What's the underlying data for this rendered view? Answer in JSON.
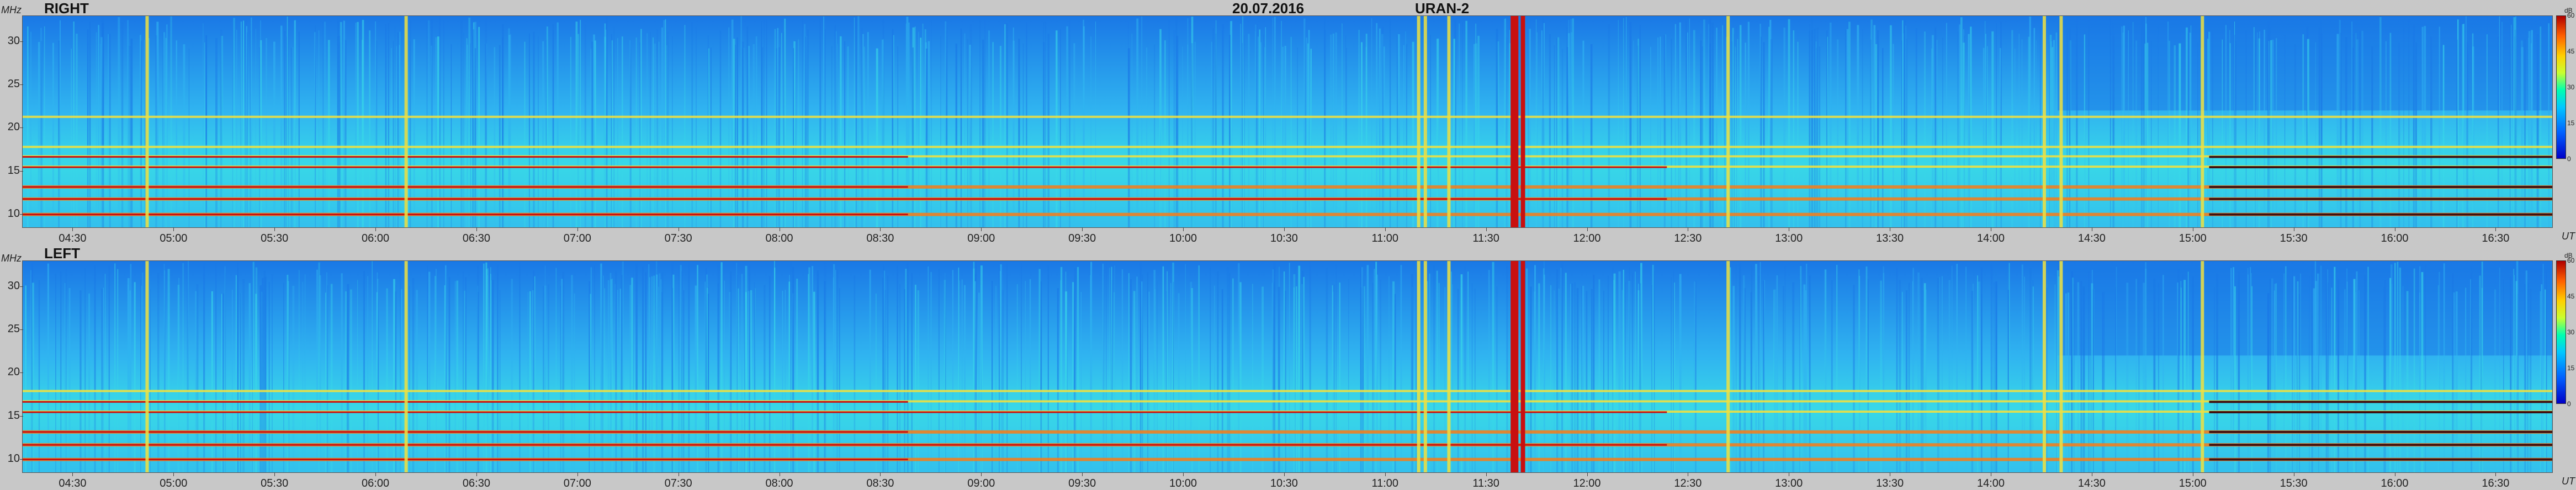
{
  "header": {
    "date": "20.07.2016",
    "instrument": "URAN-2"
  },
  "colors": {
    "background_low": "#1a78e6",
    "background_mid": "#30b4f0",
    "cyan": "#38d8e8",
    "yellow": "#f0e040",
    "orange": "#f08020",
    "red": "#c81010",
    "dark": "#401010"
  },
  "chart_data": [
    {
      "type": "heatmap",
      "title": "RIGHT",
      "xlabel": "UT",
      "ylabel": "MHz",
      "ylim": [
        8.4,
        33
      ],
      "xlim": [
        "04:15",
        "16:47"
      ],
      "yticks": [
        "30",
        "25",
        "20",
        "15",
        "10"
      ],
      "xticks": [
        "04:30",
        "05:00",
        "05:30",
        "06:00",
        "06:30",
        "07:00",
        "07:30",
        "08:00",
        "08:30",
        "09:00",
        "09:30",
        "10:00",
        "10:30",
        "11:00",
        "11:30",
        "12:00",
        "12:30",
        "13:00",
        "13:30",
        "14:00",
        "14:30",
        "15:00",
        "15:30",
        "16:00",
        "16:30"
      ],
      "colorbar": {
        "label": "dB",
        "ticks": [
          "60",
          "45",
          "30",
          "15",
          "0"
        ],
        "range": [
          0,
          60
        ]
      },
      "horizontal_interference_mhz": [
        9.9,
        11.7,
        13.1,
        15.4,
        16.6,
        17.7,
        21.2
      ],
      "vertical_bursts_ut": [
        "04:52",
        "06:09",
        "11:10",
        "11:12",
        "11:19",
        "11:38",
        "11:39",
        "11:41",
        "12:42",
        "14:16",
        "14:21",
        "15:03"
      ]
    },
    {
      "type": "heatmap",
      "title": "LEFT",
      "xlabel": "UT",
      "ylabel": "MHz",
      "ylim": [
        8.4,
        33
      ],
      "xlim": [
        "04:15",
        "16:47"
      ],
      "yticks": [
        "30",
        "25",
        "20",
        "15",
        "10"
      ],
      "xticks": [
        "04:30",
        "05:00",
        "05:30",
        "06:00",
        "06:30",
        "07:00",
        "07:30",
        "08:00",
        "08:30",
        "09:00",
        "09:30",
        "10:00",
        "10:30",
        "11:00",
        "11:30",
        "12:00",
        "12:30",
        "13:00",
        "13:30",
        "14:00",
        "14:30",
        "15:00",
        "15:30",
        "16:00",
        "16:30"
      ],
      "colorbar": {
        "label": "dB",
        "ticks": [
          "60",
          "45",
          "30",
          "15",
          "0"
        ],
        "range": [
          0,
          60
        ]
      },
      "horizontal_interference_mhz": [
        9.9,
        11.6,
        13.1,
        15.4,
        16.6,
        17.8
      ],
      "vertical_bursts_ut": [
        "04:52",
        "06:09",
        "11:10",
        "11:12",
        "11:19",
        "11:38",
        "11:39",
        "11:41",
        "12:42",
        "14:16",
        "14:21",
        "15:03"
      ]
    }
  ]
}
